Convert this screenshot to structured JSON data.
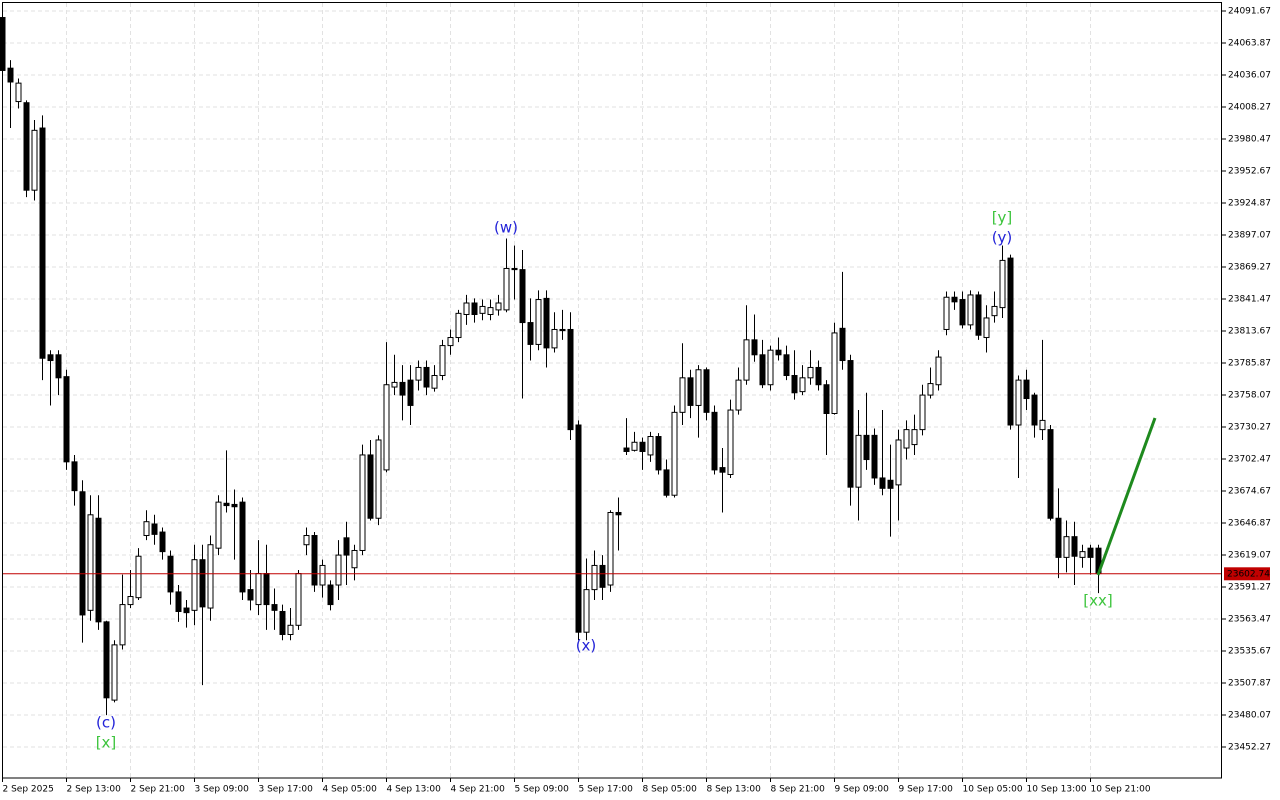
{
  "chart_data": {
    "type": "candlestick",
    "categories": [
      "2 Sep 2025",
      null,
      null,
      null,
      null,
      null,
      null,
      null,
      "2 Sep 13:00",
      null,
      null,
      null,
      null,
      null,
      null,
      null,
      "2 Sep 21:00",
      null,
      null,
      null,
      null,
      null,
      null,
      null,
      "3 Sep 09:00",
      null,
      null,
      null,
      null,
      null,
      null,
      null,
      "3 Sep 17:00",
      null,
      null,
      null,
      null,
      null,
      null,
      null,
      "4 Sep 05:00",
      null,
      null,
      null,
      null,
      null,
      null,
      null,
      "4 Sep 13:00",
      null,
      null,
      null,
      null,
      null,
      null,
      null,
      "4 Sep 21:00",
      null,
      null,
      null,
      null,
      null,
      null,
      null,
      "5 Sep 09:00",
      null,
      null,
      null,
      null,
      null,
      null,
      null,
      "5 Sep 17:00",
      null,
      null,
      null,
      null,
      null,
      null,
      null,
      "8 Sep 05:00",
      null,
      null,
      null,
      null,
      null,
      null,
      null,
      "8 Sep 13:00",
      null,
      null,
      null,
      null,
      null,
      null,
      null,
      "8 Sep 21:00",
      null,
      null,
      null,
      null,
      null,
      null,
      null,
      "9 Sep 09:00",
      null,
      null,
      null,
      null,
      null,
      null,
      null,
      "9 Sep 17:00",
      null,
      null,
      null,
      null,
      null,
      null,
      null,
      "10 Sep 05:00",
      null,
      null,
      null,
      null,
      null,
      null,
      null,
      "10 Sep 13:00",
      null,
      null,
      null,
      null,
      null,
      null,
      null,
      "10 Sep 21:00",
      null
    ],
    "open": [
      24086,
      24042,
      24013,
      24012,
      23936,
      23990,
      23793,
      23793,
      23774,
      23700,
      23674,
      23571,
      23651,
      23561,
      23493,
      23541,
      23576,
      23582,
      23636,
      23646,
      23639,
      23618,
      23587,
      23573,
      23571,
      23615,
      23573,
      23625,
      23664,
      23663,
      23665,
      23589,
      23576,
      23603,
      23576,
      23570,
      23550,
      23558,
      23628,
      23636,
      23593,
      23593,
      23593,
      23634,
      23608,
      23623,
      23706,
      23651,
      23693,
      23765,
      23769,
      23771,
      23771,
      23782,
      23764,
      23775,
      23801,
      23808,
      23828,
      23838,
      23829,
      23828,
      23832,
      23832,
      23868,
      23867,
      23821,
      23802,
      23842,
      23799,
      23815,
      23815,
      23732,
      23552,
      23589,
      23610,
      23593,
      23656,
      23712,
      23710,
      23717,
      23706,
      23722,
      23693,
      23671,
      23743,
      23773,
      23749,
      23780,
      23743,
      23695,
      23689,
      23745,
      23771,
      23806,
      23793,
      23767,
      23797,
      23793,
      23775,
      23761,
      23773,
      23782,
      23767,
      23742,
      23816,
      23788,
      23678,
      23723,
      23723,
      23686,
      23684,
      23680,
      23712,
      23715,
      23728,
      23758,
      23767,
      23815,
      23843,
      23841,
      23819,
      23845,
      23808,
      23827,
      23834,
      23877,
      23732,
      23771,
      23758,
      23728,
      23728,
      23651,
      23617,
      23635,
      23617,
      23625,
      23625
    ],
    "high": [
      24088,
      24049,
      24033,
      24014,
      23997,
      24001,
      23797,
      23797,
      23780,
      23706,
      23684,
      23671,
      23671,
      23562,
      23545,
      23602,
      23606,
      23625,
      23658,
      23654,
      23643,
      23623,
      23593,
      23580,
      23628,
      23628,
      23636,
      23671,
      23710,
      23676,
      23669,
      23606,
      23632,
      23628,
      23590,
      23576,
      23573,
      23606,
      23643,
      23639,
      23615,
      23597,
      23632,
      23648,
      23628,
      23715,
      23719,
      23723,
      23804,
      23793,
      23784,
      23784,
      23788,
      23788,
      23784,
      23806,
      23815,
      23832,
      23845,
      23842,
      23841,
      23841,
      23845,
      23894,
      23888,
      23884,
      23842,
      23849,
      23849,
      23830,
      23832,
      23830,
      23736,
      23616,
      23623,
      23619,
      23658,
      23669,
      23738,
      23726,
      23721,
      23726,
      23725,
      23702,
      23749,
      23803,
      23780,
      23784,
      23782,
      23749,
      23712,
      23754,
      23782,
      23836,
      23828,
      23806,
      23801,
      23808,
      23801,
      23797,
      23784,
      23797,
      23788,
      23771,
      23821,
      23865,
      23793,
      23745,
      23760,
      23729,
      23745,
      23715,
      23728,
      23736,
      23741,
      23767,
      23782,
      23797,
      23848,
      23848,
      23848,
      23849,
      23848,
      23836,
      23848,
      23888,
      23880,
      23775,
      23780,
      23760,
      23806,
      23732,
      23677,
      23649,
      23648,
      23628,
      23628,
      23628
    ],
    "low": [
      24036,
      23990,
      24007,
      23930,
      23927,
      23771,
      23749,
      23758,
      23693,
      23662,
      23543,
      23562,
      23554,
      23480,
      23491,
      23537,
      23573,
      23580,
      23632,
      23628,
      23615,
      23576,
      23561,
      23556,
      23558,
      23506,
      23562,
      23619,
      23656,
      23615,
      23580,
      23571,
      23567,
      23554,
      23554,
      23545,
      23545,
      23554,
      23619,
      23587,
      23582,
      23571,
      23580,
      23593,
      23597,
      23619,
      23649,
      23645,
      23691,
      23758,
      23736,
      23732,
      23762,
      23758,
      23761,
      23771,
      23793,
      23804,
      23819,
      23821,
      23823,
      23823,
      23827,
      23830,
      23841,
      23755,
      23788,
      23797,
      23782,
      23795,
      23806,
      23719,
      23545,
      23545,
      23580,
      23580,
      23587,
      23623,
      23706,
      23709,
      23693,
      23700,
      23689,
      23669,
      23669,
      23732,
      23738,
      23721,
      23736,
      23689,
      23656,
      23686,
      23741,
      23767,
      23787,
      23764,
      23762,
      23788,
      23771,
      23754,
      23758,
      23767,
      23762,
      23706,
      23741,
      23780,
      23662,
      23649,
      23693,
      23680,
      23671,
      23635,
      23649,
      23702,
      23706,
      23723,
      23755,
      23762,
      23810,
      23832,
      23816,
      23815,
      23806,
      23795,
      23821,
      23825,
      23728,
      23686,
      23745,
      23721,
      23719,
      23649,
      23599,
      23604,
      23593,
      23608,
      23602,
      23586
    ],
    "close": [
      24040,
      24030,
      24029,
      23936,
      23988,
      23790,
      23788,
      23773,
      23700,
      23675,
      23567,
      23654,
      23561,
      23495,
      23541,
      23576,
      23583,
      23618,
      23648,
      23637,
      23622,
      23587,
      23570,
      23569,
      23615,
      23574,
      23628,
      23665,
      23662,
      23661,
      23587,
      23580,
      23603,
      23576,
      23571,
      23550,
      23558,
      23603,
      23636,
      23593,
      23610,
      23576,
      23619,
      23619,
      23623,
      23706,
      23651,
      23719,
      23767,
      23769,
      23758,
      23749,
      23782,
      23765,
      23775,
      23801,
      23808,
      23829,
      23838,
      23828,
      23835,
      23834,
      23838,
      23868,
      23867,
      23821,
      23802,
      23841,
      23799,
      23815,
      23814,
      23728,
      23552,
      23589,
      23610,
      23591,
      23656,
      23654,
      23709,
      23717,
      23709,
      23722,
      23693,
      23671,
      23743,
      23773,
      23749,
      23780,
      23743,
      23693,
      23691,
      23745,
      23771,
      23806,
      23793,
      23767,
      23797,
      23793,
      23775,
      23760,
      23773,
      23782,
      23767,
      23742,
      23812,
      23788,
      23678,
      23723,
      23702,
      23686,
      23677,
      23677,
      23719,
      23728,
      23728,
      23758,
      23768,
      23791,
      23843,
      23839,
      23819,
      23845,
      23810,
      23825,
      23835,
      23875,
      23732,
      23771,
      23755,
      23732,
      23736,
      23651,
      23617,
      23635,
      23618,
      23622,
      23617,
      23603
    ],
    "up_color": "#ffffff",
    "down_color": "#000000",
    "ylim": [
      23425.34,
      24098.62
    ],
    "yticks": [
      24091.67,
      24063.87,
      24036.07,
      24008.27,
      23980.47,
      23952.67,
      23924.87,
      23897.07,
      23869.27,
      23841.47,
      23813.67,
      23785.87,
      23758.07,
      23730.27,
      23702.47,
      23674.67,
      23646.87,
      23619.07,
      23591.27,
      23563.47,
      23535.67,
      23507.87,
      23480.07,
      23452.27
    ],
    "grid": true,
    "last_price": 23602.74,
    "last_price_color": "#c00000",
    "annotations": [
      {
        "text": "(c)",
        "color": "#2323d8"
      },
      {
        "text": "[x]",
        "color": "#3cc43c"
      },
      {
        "text": "(w)",
        "color": "#2323d8"
      },
      {
        "text": "(x)",
        "color": "#2323d8"
      },
      {
        "text": "[y]",
        "color": "#3cc43c"
      },
      {
        "text": "(y)",
        "color": "#2323d8"
      },
      {
        "text": "[xx]",
        "color": "#3cc43c"
      }
    ]
  }
}
